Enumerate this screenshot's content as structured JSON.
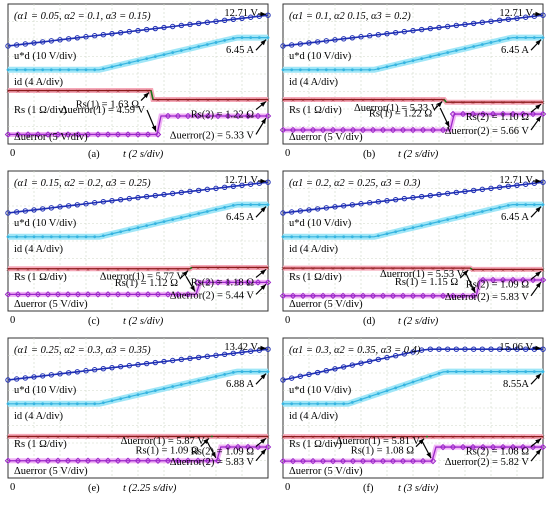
{
  "panels": [
    {
      "id": "a",
      "caption": "(a)",
      "time_axis": "t (2 s/div)",
      "origin": "0",
      "params": "(α1 = 0.05, α2 = 0.1, α3 = 0.15)",
      "labels": {
        "ud": "u*d (10 V/div)",
        "id": "id (4 A/div)",
        "rs": "Rs (1 Ω/div)",
        "du": "Δuerror (5 V/div)"
      },
      "annotations": {
        "ud_final": "12.71 V",
        "id_final": "6.45 A",
        "rs1": "Rs(1) = 1.63 Ω",
        "rs2": "Rs(2) = 1.22 Ω",
        "du1": "Δuerror(1) = 4.59 V",
        "du2": "Δuerror(2) = 5.33 V"
      },
      "step_time": 0.55,
      "rs_level_1": 1.63,
      "rs_level_2": 1.22,
      "du_level_1": 4.59,
      "du_level_2": 5.33,
      "id_ramp_start": 0.35
    },
    {
      "id": "b",
      "caption": "(b)",
      "time_axis": "t (2 s/div)",
      "origin": "0",
      "params": "(α1 = 0.1, α2 0.15, α3 = 0.2)",
      "labels": {
        "ud": "u*d (10 V/div)",
        "id": "id (4 A/div)",
        "rs": "Rs (1 Ω/div)",
        "du": "Δuerror (5 V/div)"
      },
      "annotations": {
        "ud_final": "12.71 V",
        "id_final": "6.45 A",
        "rs1": "Rs(1) = 1.22 Ω",
        "rs2": "Rs(2) = 1.10 Ω",
        "du1": "Δuerror(1) = 5.33 V",
        "du2": "Δuerror(2) = 5.66 V"
      },
      "step_time": 0.62,
      "rs_level_1": 1.22,
      "rs_level_2": 1.1,
      "du_level_1": 5.33,
      "du_level_2": 5.66,
      "id_ramp_start": 0.35
    },
    {
      "id": "c",
      "caption": "(c)",
      "time_axis": "t (2 s/div)",
      "origin": "0",
      "params": "(α1 = 0.15, α2 = 0.2, α3 = 0.25)",
      "labels": {
        "ud": "u*d (10 V/div)",
        "id": "id (4 A/div)",
        "rs": "Rs (1 Ω/div)",
        "du": "Δuerror (5 V/div)"
      },
      "annotations": {
        "ud_final": "12.71 V",
        "id_final": "6.45 A",
        "rs1": "Rs(1) = 1.12 Ω",
        "rs2": "Rs(2) = 1.18 Ω",
        "du1": "Δuerror(1) = 5.77 V",
        "du2": "Δuerror(2) = 5.44 V"
      },
      "step_time": 0.7,
      "rs_level_1": 1.12,
      "rs_level_2": 1.18,
      "du_level_1": 5.77,
      "du_level_2": 5.44,
      "id_ramp_start": 0.35
    },
    {
      "id": "d",
      "caption": "(d)",
      "time_axis": "t (2 s/div)",
      "origin": "0",
      "params": "(α1 = 0.2, α2 = 0.25, α3 = 0.3)",
      "labels": {
        "ud": "u*d (10 V/div)",
        "id": "id (4 A/div)",
        "rs": "Rs (1 Ω/div)",
        "du": "Δuerror (5 V/div)"
      },
      "annotations": {
        "ud_final": "12.71 V",
        "id_final": "6.45 A",
        "rs1": "Rs(1) = 1.15 Ω",
        "rs2": "Rs(2) = 1.09 Ω",
        "du1": "Δuerror(1) = 5.53 V",
        "du2": "Δuerror(2) = 5.83 V"
      },
      "step_time": 0.72,
      "rs_level_1": 1.15,
      "rs_level_2": 1.09,
      "du_level_1": 5.53,
      "du_level_2": 5.83,
      "id_ramp_start": 0.35
    },
    {
      "id": "e",
      "caption": "(e)",
      "time_axis": "t (2.25 s/div)",
      "origin": "0",
      "params": "(α1 = 0.25, α2 = 0.3, α3 = 0.35)",
      "labels": {
        "ud": "u*d (10 V/div)",
        "id": "id (4 A/div)",
        "rs": "Rs (1 Ω/div)",
        "du": "Δuerror (5 V/div)"
      },
      "annotations": {
        "ud_final": "13.42 V",
        "id_final": "6.88 A",
        "rs1": "Rs(1) = 1.09 Ω",
        "rs2": "Rs(2) = 1.09 Ω",
        "du1": "Δuerror(1) = 5.87 V",
        "du2": "Δuerror(2) = 5.83 V"
      },
      "step_time": 0.78,
      "rs_level_1": 1.09,
      "rs_level_2": 1.09,
      "du_level_1": 5.87,
      "du_level_2": 5.83,
      "id_ramp_start": 0.35
    },
    {
      "id": "f",
      "caption": "(f)",
      "time_axis": "t (3 s/div)",
      "origin": "0",
      "params": "(α1 = 0.3, α2 = 0.35, α3 = 0.4)",
      "labels": {
        "ud": "u*d (10 V/div)",
        "id": "id (4 A/div)",
        "rs": "Rs (1 Ω/div)",
        "du": "Δuerror (5 V/div)"
      },
      "annotations": {
        "ud_final": "15.06 V",
        "id_final": "8.55A",
        "rs1": "Rs(1) = 1.08 Ω",
        "rs2": "Rs(2) = 1.08 Ω",
        "du1": "Δuerror(1) = 5.81 V",
        "du2": "Δuerror(2) = 5.82 V"
      },
      "step_time": 0.55,
      "rs_level_1": 1.08,
      "rs_level_2": 1.08,
      "du_level_1": 5.81,
      "du_level_2": 5.82,
      "id_ramp_start": 0.25
    }
  ],
  "colors": {
    "ud": "#1f2fb4",
    "id": "#36b4e0",
    "id_band": "#9fe6f7",
    "rs": "#8b1a1a",
    "rs_band": "#f5a8b8",
    "du": "#9b27c9",
    "du_band": "#f0b3f5",
    "step": "#1b7a1b",
    "grid": "#cfd8c8"
  },
  "chart_data": [
    {
      "type": "line",
      "caption": "(a)",
      "series": [
        {
          "name": "u*d (10 V/div)",
          "final": "12.71 V"
        },
        {
          "name": "id (4 A/div)",
          "final": "6.45 A"
        },
        {
          "name": "Rs (1 Ω/div)",
          "values": [
            1.63,
            1.22
          ]
        },
        {
          "name": "Δuerror (5 V/div)",
          "values": [
            4.59,
            5.33
          ]
        }
      ]
    },
    {
      "type": "line",
      "caption": "(b)",
      "series": [
        {
          "name": "u*d (10 V/div)",
          "final": "12.71 V"
        },
        {
          "name": "id (4 A/div)",
          "final": "6.45 A"
        },
        {
          "name": "Rs (1 Ω/div)",
          "values": [
            1.22,
            1.1
          ]
        },
        {
          "name": "Δuerror (5 V/div)",
          "values": [
            5.33,
            5.66
          ]
        }
      ]
    },
    {
      "type": "line",
      "caption": "(c)",
      "series": [
        {
          "name": "u*d (10 V/div)",
          "final": "12.71 V"
        },
        {
          "name": "id (4 A/div)",
          "final": "6.45 A"
        },
        {
          "name": "Rs (1 Ω/div)",
          "values": [
            1.12,
            1.18
          ]
        },
        {
          "name": "Δuerror (5 V/div)",
          "values": [
            5.77,
            5.44
          ]
        }
      ]
    },
    {
      "type": "line",
      "caption": "(d)",
      "series": [
        {
          "name": "u*d (10 V/div)",
          "final": "12.71 V"
        },
        {
          "name": "id (4 A/div)",
          "final": "6.45 A"
        },
        {
          "name": "Rs (1 Ω/div)",
          "values": [
            1.15,
            1.09
          ]
        },
        {
          "name": "Δuerror (5 V/div)",
          "values": [
            5.53,
            5.83
          ]
        }
      ]
    },
    {
      "type": "line",
      "caption": "(e)",
      "series": [
        {
          "name": "u*d (10 V/div)",
          "final": "13.42 V"
        },
        {
          "name": "id (4 A/div)",
          "final": "6.88 A"
        },
        {
          "name": "Rs (1 Ω/div)",
          "values": [
            1.09,
            1.09
          ]
        },
        {
          "name": "Δuerror (5 V/div)",
          "values": [
            5.87,
            5.83
          ]
        }
      ]
    },
    {
      "type": "line",
      "caption": "(f)",
      "series": [
        {
          "name": "u*d (10 V/div)",
          "final": "15.06 V"
        },
        {
          "name": "id (4 A/div)",
          "final": "8.55A"
        },
        {
          "name": "Rs (1 Ω/div)",
          "values": [
            1.08,
            1.08
          ]
        },
        {
          "name": "Δuerror (5 V/div)",
          "values": [
            5.81,
            5.82
          ]
        }
      ]
    }
  ]
}
